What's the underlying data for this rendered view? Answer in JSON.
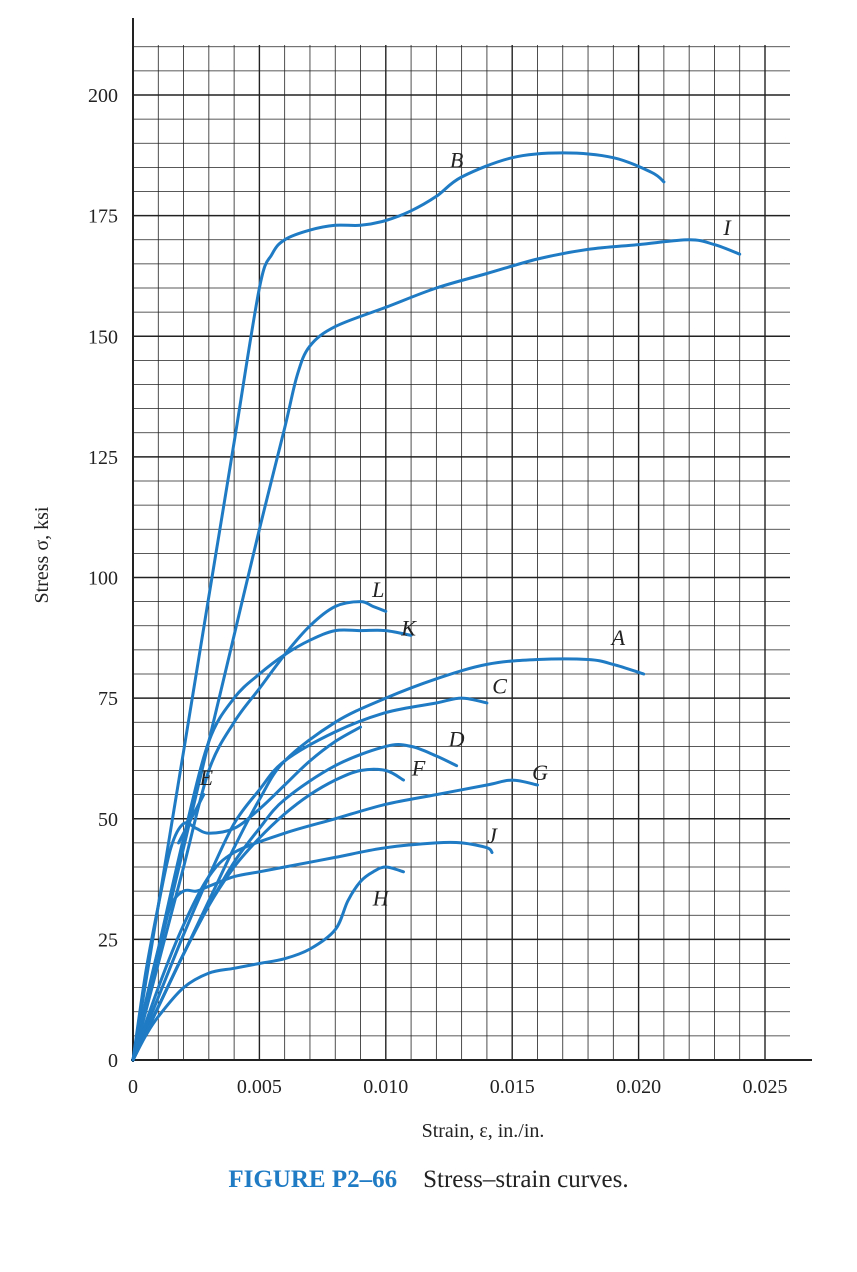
{
  "chart_data": {
    "type": "line",
    "xlabel": "Strain, ε, in./in.",
    "ylabel": "Stress σ, ksi",
    "xlim": [
      0,
      0.027
    ],
    "ylim": [
      0,
      210
    ],
    "x_ticks": [
      "0",
      "0.005",
      "0.010",
      "0.015",
      "0.020",
      "0.025"
    ],
    "y_ticks": [
      "0",
      "25",
      "50",
      "75",
      "100",
      "125",
      "150",
      "175",
      "200"
    ],
    "grid": true,
    "line_color": "#1f7bc4",
    "series": [
      {
        "name": "A",
        "points": [
          [
            0,
            0
          ],
          [
            0.001,
            11
          ],
          [
            0.002,
            22
          ],
          [
            0.003,
            33
          ],
          [
            0.004,
            44
          ],
          [
            0.005,
            54
          ],
          [
            0.006,
            62
          ],
          [
            0.008,
            70
          ],
          [
            0.01,
            75
          ],
          [
            0.012,
            79
          ],
          [
            0.014,
            82
          ],
          [
            0.016,
            83
          ],
          [
            0.018,
            83
          ],
          [
            0.019,
            82
          ],
          [
            0.0202,
            80
          ]
        ]
      },
      {
        "name": "B",
        "points": [
          [
            0,
            0
          ],
          [
            0.001,
            32
          ],
          [
            0.002,
            64
          ],
          [
            0.003,
            96
          ],
          [
            0.004,
            128
          ],
          [
            0.005,
            160
          ],
          [
            0.0055,
            167
          ],
          [
            0.006,
            170
          ],
          [
            0.007,
            172
          ],
          [
            0.008,
            173
          ],
          [
            0.009,
            173
          ],
          [
            0.01,
            174
          ],
          [
            0.011,
            176
          ],
          [
            0.012,
            179
          ],
          [
            0.013,
            183
          ],
          [
            0.015,
            187
          ],
          [
            0.017,
            188
          ],
          [
            0.019,
            187
          ],
          [
            0.0205,
            184
          ],
          [
            0.021,
            182
          ]
        ]
      },
      {
        "name": "C",
        "points": [
          [
            0,
            0
          ],
          [
            0.001,
            13
          ],
          [
            0.002,
            26
          ],
          [
            0.003,
            38
          ],
          [
            0.004,
            49
          ],
          [
            0.005,
            56
          ],
          [
            0.006,
            62
          ],
          [
            0.008,
            68
          ],
          [
            0.01,
            72
          ],
          [
            0.012,
            74
          ],
          [
            0.013,
            75
          ],
          [
            0.014,
            74
          ]
        ]
      },
      {
        "name": "D",
        "points": [
          [
            0,
            0
          ],
          [
            0.001,
            11
          ],
          [
            0.002,
            22
          ],
          [
            0.003,
            32
          ],
          [
            0.004,
            41
          ],
          [
            0.005,
            48
          ],
          [
            0.006,
            54
          ],
          [
            0.008,
            61
          ],
          [
            0.01,
            65
          ],
          [
            0.011,
            65
          ],
          [
            0.012,
            63
          ],
          [
            0.0128,
            61
          ]
        ]
      },
      {
        "name": "E",
        "points": [
          [
            0,
            0
          ],
          [
            0.0005,
            18
          ],
          [
            0.001,
            32
          ],
          [
            0.0015,
            44
          ],
          [
            0.002,
            49
          ],
          [
            0.0025,
            48
          ],
          [
            0.003,
            47
          ],
          [
            0.004,
            48
          ],
          [
            0.005,
            52
          ],
          [
            0.006,
            57
          ],
          [
            0.007,
            62
          ],
          [
            0.008,
            66
          ],
          [
            0.009,
            69
          ]
        ]
      },
      {
        "name": "E (upper branch)",
        "points": [
          [
            0.0018,
            45
          ],
          [
            0.0023,
            50
          ],
          [
            0.0028,
            55
          ]
        ]
      },
      {
        "name": "F",
        "points": [
          [
            0,
            0
          ],
          [
            0.001,
            11
          ],
          [
            0.002,
            22
          ],
          [
            0.003,
            32
          ],
          [
            0.004,
            40
          ],
          [
            0.005,
            46
          ],
          [
            0.006,
            51
          ],
          [
            0.007,
            55
          ],
          [
            0.008,
            58
          ],
          [
            0.009,
            60
          ],
          [
            0.01,
            60
          ],
          [
            0.0107,
            58
          ]
        ]
      },
      {
        "name": "G",
        "points": [
          [
            0,
            0
          ],
          [
            0.001,
            15
          ],
          [
            0.002,
            28
          ],
          [
            0.003,
            38
          ],
          [
            0.004,
            43
          ],
          [
            0.006,
            47
          ],
          [
            0.008,
            50
          ],
          [
            0.01,
            53
          ],
          [
            0.012,
            55
          ],
          [
            0.014,
            57
          ],
          [
            0.015,
            58
          ],
          [
            0.016,
            57
          ]
        ]
      },
      {
        "name": "H",
        "points": [
          [
            0,
            0
          ],
          [
            0.0005,
            5
          ],
          [
            0.001,
            9
          ],
          [
            0.002,
            15
          ],
          [
            0.003,
            18
          ],
          [
            0.004,
            19
          ],
          [
            0.005,
            20
          ],
          [
            0.006,
            21
          ],
          [
            0.007,
            23
          ],
          [
            0.008,
            27
          ],
          [
            0.0085,
            33
          ],
          [
            0.009,
            37
          ],
          [
            0.0095,
            39
          ],
          [
            0.01,
            40
          ],
          [
            0.0107,
            39
          ]
        ]
      },
      {
        "name": "I",
        "points": [
          [
            0,
            0
          ],
          [
            0.001,
            22
          ],
          [
            0.002,
            44
          ],
          [
            0.003,
            66
          ],
          [
            0.004,
            88
          ],
          [
            0.005,
            110
          ],
          [
            0.006,
            131
          ],
          [
            0.0065,
            142
          ],
          [
            0.007,
            148
          ],
          [
            0.008,
            152
          ],
          [
            0.01,
            156
          ],
          [
            0.012,
            160
          ],
          [
            0.014,
            163
          ],
          [
            0.016,
            166
          ],
          [
            0.018,
            168
          ],
          [
            0.02,
            169
          ],
          [
            0.022,
            170
          ],
          [
            0.023,
            169
          ],
          [
            0.024,
            167
          ]
        ]
      },
      {
        "name": "J",
        "points": [
          [
            0,
            0
          ],
          [
            0.0005,
            12
          ],
          [
            0.001,
            23
          ],
          [
            0.0015,
            32
          ],
          [
            0.002,
            35
          ],
          [
            0.0025,
            35
          ],
          [
            0.003,
            36
          ],
          [
            0.004,
            38
          ],
          [
            0.005,
            39
          ],
          [
            0.006,
            40
          ],
          [
            0.008,
            42
          ],
          [
            0.01,
            44
          ],
          [
            0.012,
            45
          ],
          [
            0.013,
            45
          ],
          [
            0.014,
            44
          ],
          [
            0.0142,
            43
          ]
        ]
      },
      {
        "name": "K",
        "points": [
          [
            0,
            0
          ],
          [
            0.001,
            23
          ],
          [
            0.002,
            46
          ],
          [
            0.003,
            66
          ],
          [
            0.004,
            75
          ],
          [
            0.005,
            80
          ],
          [
            0.006,
            84
          ],
          [
            0.007,
            87
          ],
          [
            0.008,
            89
          ],
          [
            0.009,
            89
          ],
          [
            0.01,
            89
          ],
          [
            0.011,
            88
          ]
        ]
      },
      {
        "name": "L",
        "points": [
          [
            0,
            0
          ],
          [
            0.001,
            20
          ],
          [
            0.002,
            40
          ],
          [
            0.003,
            60
          ],
          [
            0.004,
            70
          ],
          [
            0.005,
            77
          ],
          [
            0.006,
            84
          ],
          [
            0.007,
            90
          ],
          [
            0.008,
            94
          ],
          [
            0.009,
            95
          ],
          [
            0.0095,
            94
          ],
          [
            0.01,
            93
          ]
        ]
      }
    ],
    "curve_labels": [
      {
        "text": "A",
        "x": 0.0192,
        "y": 86
      },
      {
        "text": "B",
        "x": 0.0128,
        "y": 185
      },
      {
        "text": "C",
        "x": 0.0145,
        "y": 76
      },
      {
        "text": "D",
        "x": 0.0128,
        "y": 65
      },
      {
        "text": "E",
        "x": 0.0029,
        "y": 57
      },
      {
        "text": "F",
        "x": 0.0113,
        "y": 59
      },
      {
        "text": "G",
        "x": 0.0161,
        "y": 58
      },
      {
        "text": "H",
        "x": 0.0098,
        "y": 32
      },
      {
        "text": "I",
        "x": 0.0235,
        "y": 171
      },
      {
        "text": "J",
        "x": 0.0142,
        "y": 45
      },
      {
        "text": "K",
        "x": 0.0109,
        "y": 88
      },
      {
        "text": "L",
        "x": 0.0097,
        "y": 96
      }
    ]
  },
  "caption": {
    "figure_number": "FIGURE P2–66",
    "text": "Stress–strain curves."
  }
}
